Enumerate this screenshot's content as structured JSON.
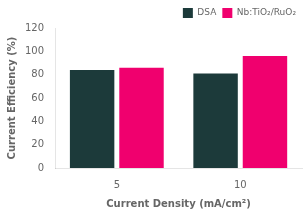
{
  "chart_data": {
    "type": "bar",
    "categories": [
      "5",
      "10"
    ],
    "series": [
      {
        "name": "DSA",
        "color": "#1c3a3a",
        "values": [
          84,
          81
        ]
      },
      {
        "name": "Nb:TiO₂/RuO₂",
        "color": "#f0006e",
        "values": [
          86,
          96
        ]
      }
    ],
    "xlabel": "Current Density (mA/cm²)",
    "ylabel": "Current Efficiency (%)",
    "ylim": [
      0,
      120
    ],
    "yticks": [
      0,
      20,
      40,
      60,
      80,
      100,
      120
    ],
    "grid": false,
    "legend": "upper right"
  }
}
